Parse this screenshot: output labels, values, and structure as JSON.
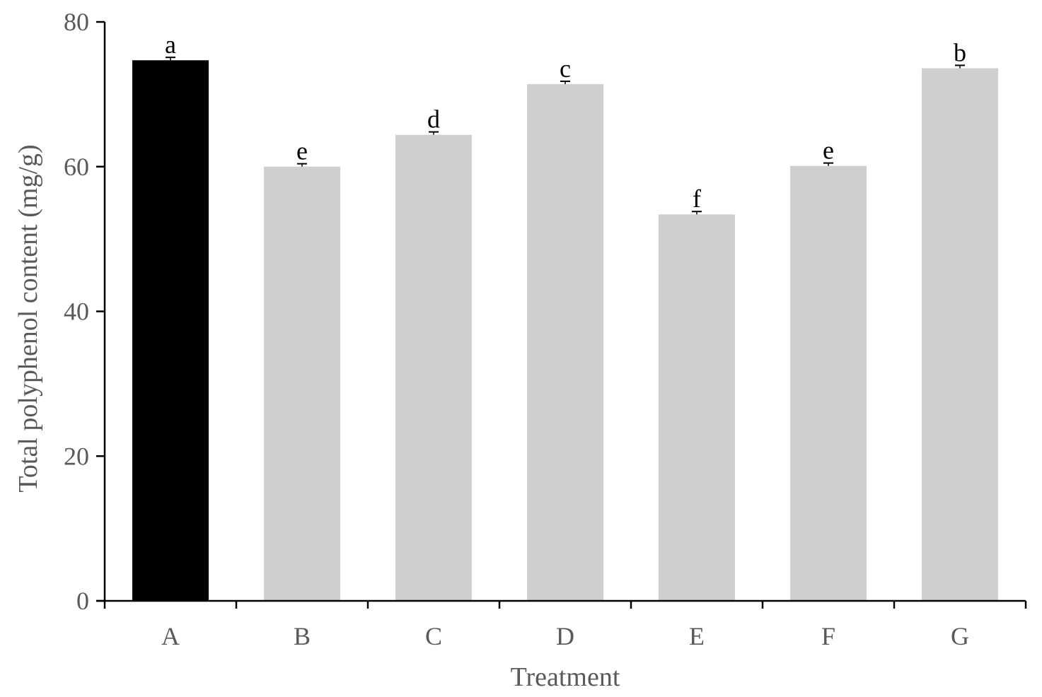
{
  "chart_data": {
    "type": "bar",
    "xlabel": "Treatment",
    "ylabel": "Total polyphenol content  (mg/g)",
    "ylim": [
      0,
      80
    ],
    "yticks": [
      0,
      20,
      40,
      60,
      80
    ],
    "categories": [
      "A",
      "B",
      "C",
      "D",
      "E",
      "F",
      "G"
    ],
    "values": [
      74.7,
      60.0,
      64.4,
      71.4,
      53.4,
      60.1,
      73.6
    ],
    "errors": [
      0.4,
      0.4,
      0.4,
      0.4,
      0.4,
      0.4,
      0.4
    ],
    "significance": [
      "a",
      "e",
      "d",
      "c",
      "f",
      "e",
      "b"
    ],
    "colors": [
      "#000000",
      "#d0cece",
      "#d0cece",
      "#d0cece",
      "#d0cece",
      "#d0cece",
      "#d0cece"
    ],
    "grid": false,
    "legend": "none"
  }
}
